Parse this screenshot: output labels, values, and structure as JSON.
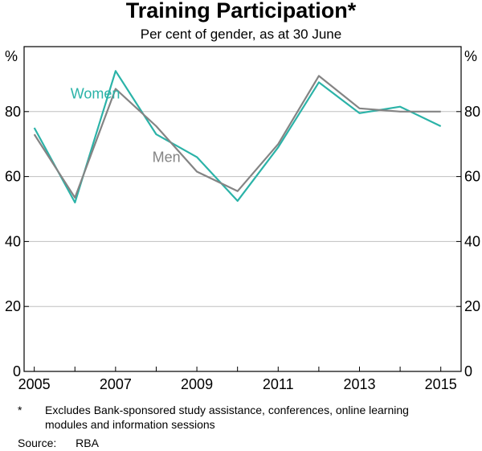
{
  "chart_data": {
    "type": "line",
    "title": "Training Participation*",
    "subtitle": "Per cent of gender, as at 30 June",
    "yunit_left": "%",
    "yunit_right": "%",
    "xlim": [
      2004.75,
      2015.5
    ],
    "ylim": [
      0,
      100
    ],
    "xticks": [
      2005,
      2007,
      2009,
      2011,
      2013,
      2015
    ],
    "xtick_labels": [
      "2005",
      "2007",
      "2009",
      "2011",
      "2013",
      "2015"
    ],
    "yticks": [
      0,
      20,
      40,
      60,
      80
    ],
    "ytick_labels": [
      "0",
      "20",
      "40",
      "60",
      "80"
    ],
    "grid": true,
    "series": [
      {
        "name": "Women",
        "color": "#2bb3a8",
        "label_pos": [
          2006.5,
          84
        ],
        "x": [
          2005,
          2006,
          2007,
          2008,
          2009,
          2010,
          2011,
          2012,
          2013,
          2014,
          2015
        ],
        "values": [
          75,
          52,
          92.5,
          73,
          66,
          52.5,
          69,
          89,
          79.5,
          81.5,
          75.5
        ]
      },
      {
        "name": "Men",
        "color": "#848484",
        "label_pos": [
          2008.25,
          64.5
        ],
        "x": [
          2005,
          2006,
          2007,
          2008,
          2009,
          2010,
          2011,
          2012,
          2013,
          2014,
          2015
        ],
        "values": [
          73,
          53.5,
          87,
          75.5,
          61.5,
          55.5,
          70,
          91,
          81,
          80,
          80
        ]
      }
    ]
  },
  "footnote": {
    "marker": "*",
    "text": "Excludes Bank-sponsored study assistance, conferences, online learning modules and information sessions"
  },
  "source": {
    "label": "Source:",
    "value": "RBA"
  }
}
